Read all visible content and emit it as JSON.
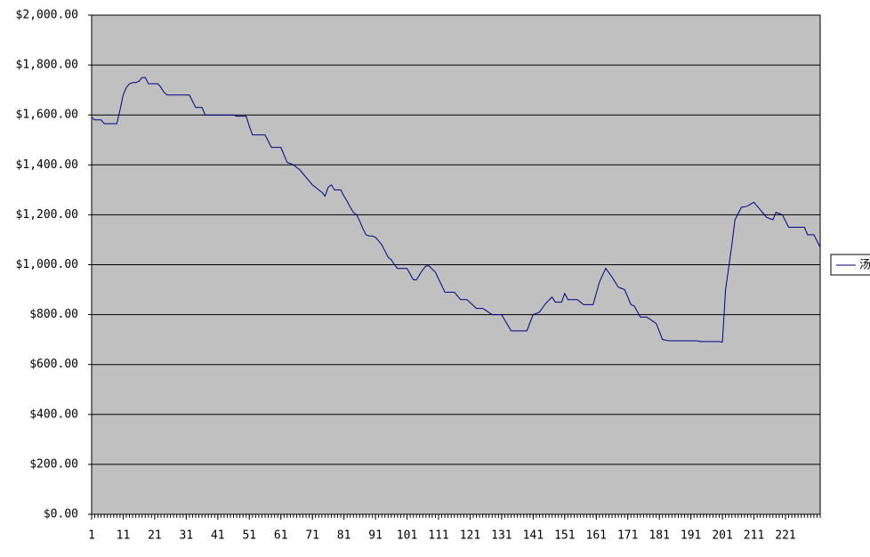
{
  "chart_data": {
    "type": "line",
    "x": [
      1,
      2,
      3,
      4,
      5,
      6,
      7,
      8,
      9,
      10,
      11,
      12,
      13,
      14,
      15,
      16,
      17,
      18,
      19,
      20,
      21,
      22,
      23,
      24,
      25,
      26,
      27,
      28,
      29,
      30,
      31,
      32,
      33,
      34,
      35,
      36,
      37,
      38,
      39,
      40,
      41,
      42,
      43,
      44,
      45,
      46,
      47,
      48,
      49,
      50,
      51,
      52,
      53,
      54,
      55,
      56,
      57,
      58,
      59,
      60,
      61,
      62,
      63,
      64,
      65,
      66,
      67,
      68,
      69,
      70,
      71,
      72,
      73,
      74,
      75,
      76,
      77,
      78,
      79,
      80,
      81,
      82,
      83,
      84,
      85,
      86,
      87,
      88,
      89,
      90,
      91,
      92,
      93,
      94,
      95,
      96,
      97,
      98,
      99,
      100,
      101,
      102,
      103,
      104,
      105,
      106,
      107,
      108,
      109,
      110,
      111,
      112,
      113,
      114,
      115,
      116,
      117,
      118,
      119,
      120,
      121,
      122,
      123,
      124,
      125,
      126,
      127,
      128,
      129,
      130,
      131,
      132,
      133,
      134,
      135,
      136,
      137,
      138,
      139,
      140,
      141,
      142,
      143,
      144,
      145,
      146,
      147,
      148,
      149,
      150,
      151,
      152,
      153,
      154,
      155,
      156,
      157,
      158,
      159,
      160,
      161,
      162,
      163,
      164,
      165,
      166,
      167,
      168,
      169,
      170,
      171,
      172,
      173,
      174,
      175,
      176,
      177,
      178,
      179,
      180,
      181,
      182,
      183,
      184,
      185,
      186,
      187,
      188,
      189,
      190,
      191,
      192,
      193,
      194,
      195,
      196,
      197,
      198,
      199,
      200,
      201,
      202,
      203,
      204,
      205,
      206,
      207,
      208,
      209,
      210,
      211,
      212,
      213,
      214,
      215,
      216,
      217,
      218,
      219,
      220,
      221,
      222,
      223,
      224,
      225,
      226,
      227,
      228,
      229,
      230,
      231,
      232
    ],
    "series": [
      {
        "name": "汤",
        "color": "#000080",
        "values": [
          1590,
          1580,
          1580,
          1580,
          1565,
          1565,
          1565,
          1565,
          1565,
          1620,
          1680,
          1710,
          1725,
          1730,
          1730,
          1735,
          1750,
          1750,
          1725,
          1725,
          1725,
          1725,
          1710,
          1690,
          1680,
          1680,
          1680,
          1680,
          1680,
          1680,
          1680,
          1680,
          1655,
          1630,
          1630,
          1630,
          1600,
          1600,
          1600,
          1600,
          1600,
          1600,
          1600,
          1600,
          1600,
          1600,
          1595,
          1595,
          1595,
          1595,
          1555,
          1520,
          1520,
          1520,
          1520,
          1520,
          1495,
          1470,
          1470,
          1470,
          1470,
          1440,
          1410,
          1405,
          1400,
          1390,
          1380,
          1365,
          1350,
          1335,
          1320,
          1310,
          1300,
          1290,
          1275,
          1310,
          1320,
          1300,
          1300,
          1300,
          1275,
          1255,
          1230,
          1210,
          1200,
          1175,
          1145,
          1120,
          1115,
          1115,
          1110,
          1095,
          1080,
          1055,
          1030,
          1020,
          1000,
          985,
          985,
          985,
          985,
          962,
          940,
          940,
          960,
          980,
          995,
          995,
          982,
          970,
          943,
          917,
          890,
          890,
          890,
          890,
          875,
          860,
          860,
          860,
          848,
          837,
          825,
          825,
          825,
          817,
          808,
          800,
          800,
          800,
          800,
          778,
          757,
          735,
          735,
          735,
          735,
          735,
          735,
          768,
          800,
          805,
          810,
          828,
          845,
          858,
          870,
          850,
          850,
          850,
          885,
          860,
          860,
          860,
          860,
          850,
          840,
          840,
          840,
          840,
          885,
          930,
          958,
          985,
          968,
          950,
          930,
          910,
          905,
          900,
          870,
          840,
          835,
          813,
          790,
          790,
          790,
          782,
          773,
          765,
          733,
          700,
          698,
          695,
          695,
          695,
          695,
          695,
          695,
          695,
          695,
          695,
          695,
          692,
          692,
          692,
          692,
          692,
          692,
          692,
          690,
          900,
          990,
          1080,
          1180,
          1205,
          1230,
          1232,
          1235,
          1243,
          1250,
          1235,
          1220,
          1205,
          1190,
          1185,
          1180,
          1210,
          1205,
          1200,
          1175,
          1150,
          1150,
          1150,
          1150,
          1150,
          1150,
          1120,
          1120,
          1120,
          1095,
          1070
        ]
      }
    ],
    "xlim": [
      1,
      232
    ],
    "xticks": [
      1,
      11,
      21,
      31,
      41,
      51,
      61,
      71,
      81,
      91,
      101,
      111,
      121,
      131,
      141,
      151,
      161,
      171,
      181,
      191,
      201,
      211,
      221
    ],
    "ylim": [
      0,
      2000
    ],
    "yticks": [
      {
        "value": 0,
        "label": "$0.00"
      },
      {
        "value": 200,
        "label": "$200.00"
      },
      {
        "value": 400,
        "label": "$400.00"
      },
      {
        "value": 600,
        "label": "$600.00"
      },
      {
        "value": 800,
        "label": "$800.00"
      },
      {
        "value": 1000,
        "label": "$1,000.00"
      },
      {
        "value": 1200,
        "label": "$1,200.00"
      },
      {
        "value": 1400,
        "label": "$1,400.00"
      },
      {
        "value": 1600,
        "label": "$1,600.00"
      },
      {
        "value": 1800,
        "label": "$1,800.00"
      },
      {
        "value": 2000,
        "label": "$2,000.00"
      }
    ],
    "grid": true,
    "plot_background": "#c0c0c0",
    "legend": "right"
  }
}
